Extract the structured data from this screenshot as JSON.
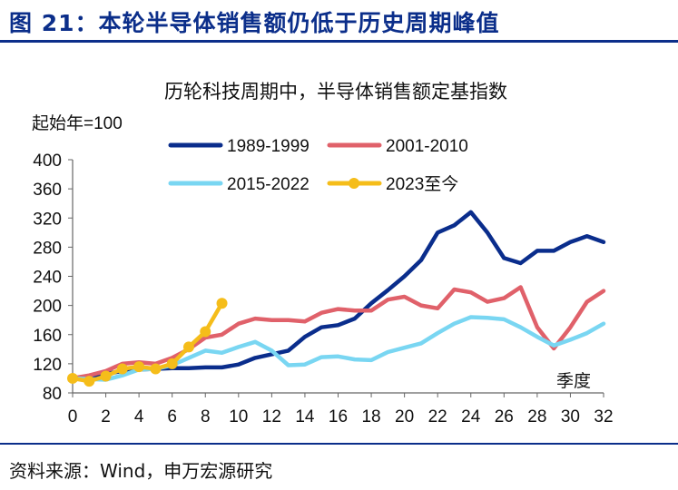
{
  "figure": {
    "title": "图 21：本轮半导体销售额仍低于历史周期峰值",
    "source": "资料来源：Wind，申万宏源研究"
  },
  "chart_data": {
    "type": "line",
    "title": "历轮科技周期中，半导体销售额定基指数",
    "ylabel": "起始年=100",
    "xlabel": "季度",
    "ylim": [
      80,
      400
    ],
    "xlim": [
      0,
      32
    ],
    "y_ticks": [
      80,
      120,
      160,
      200,
      240,
      280,
      320,
      360,
      400
    ],
    "x_ticks": [
      0,
      2,
      4,
      6,
      8,
      10,
      12,
      14,
      16,
      18,
      20,
      22,
      24,
      26,
      28,
      30,
      32
    ],
    "grid": false,
    "legend_position": "top",
    "series": [
      {
        "name": "1989-1999",
        "color": "#0a2d8c",
        "markers": false,
        "x": [
          0,
          1,
          2,
          3,
          4,
          5,
          6,
          7,
          8,
          9,
          10,
          11,
          12,
          13,
          14,
          15,
          16,
          17,
          18,
          19,
          20,
          21,
          22,
          23,
          24,
          25,
          26,
          27,
          28,
          29,
          30,
          31,
          32
        ],
        "values": [
          100,
          103,
          106,
          110,
          112,
          113,
          114,
          114,
          115,
          115,
          119,
          128,
          133,
          138,
          157,
          170,
          173,
          182,
          203,
          221,
          240,
          262,
          300,
          310,
          328,
          300,
          265,
          258,
          275,
          275,
          287,
          295,
          287
        ]
      },
      {
        "name": "2001-2010",
        "color": "#e0616a",
        "markers": false,
        "x": [
          0,
          1,
          2,
          3,
          4,
          5,
          6,
          7,
          8,
          9,
          10,
          11,
          12,
          13,
          14,
          15,
          16,
          17,
          18,
          19,
          20,
          21,
          22,
          23,
          24,
          25,
          26,
          27,
          28,
          29,
          30,
          31,
          32
        ],
        "values": [
          100,
          104,
          110,
          120,
          122,
          120,
          128,
          140,
          156,
          160,
          175,
          182,
          180,
          180,
          178,
          190,
          195,
          193,
          193,
          208,
          212,
          200,
          196,
          222,
          218,
          205,
          210,
          225,
          170,
          141,
          170,
          205,
          220
        ]
      },
      {
        "name": "2015-2022",
        "color": "#79d6f2",
        "markers": false,
        "x": [
          0,
          1,
          2,
          3,
          4,
          5,
          6,
          7,
          8,
          9,
          10,
          11,
          12,
          13,
          14,
          15,
          16,
          17,
          18,
          19,
          20,
          21,
          22,
          23,
          24,
          25,
          26,
          27,
          28,
          29,
          30,
          31,
          32
        ],
        "values": [
          100,
          99,
          98,
          104,
          112,
          113,
          118,
          128,
          138,
          135,
          143,
          150,
          138,
          118,
          119,
          129,
          130,
          126,
          125,
          136,
          142,
          148,
          162,
          175,
          184,
          183,
          181,
          170,
          157,
          145,
          153,
          162,
          175
        ]
      },
      {
        "name": "2023至今",
        "color": "#f5bd1a",
        "markers": true,
        "x": [
          0,
          1,
          2,
          3,
          4,
          5,
          6,
          7,
          8,
          9
        ],
        "values": [
          100,
          96,
          103,
          113,
          116,
          113,
          120,
          143,
          164,
          203
        ]
      }
    ]
  }
}
